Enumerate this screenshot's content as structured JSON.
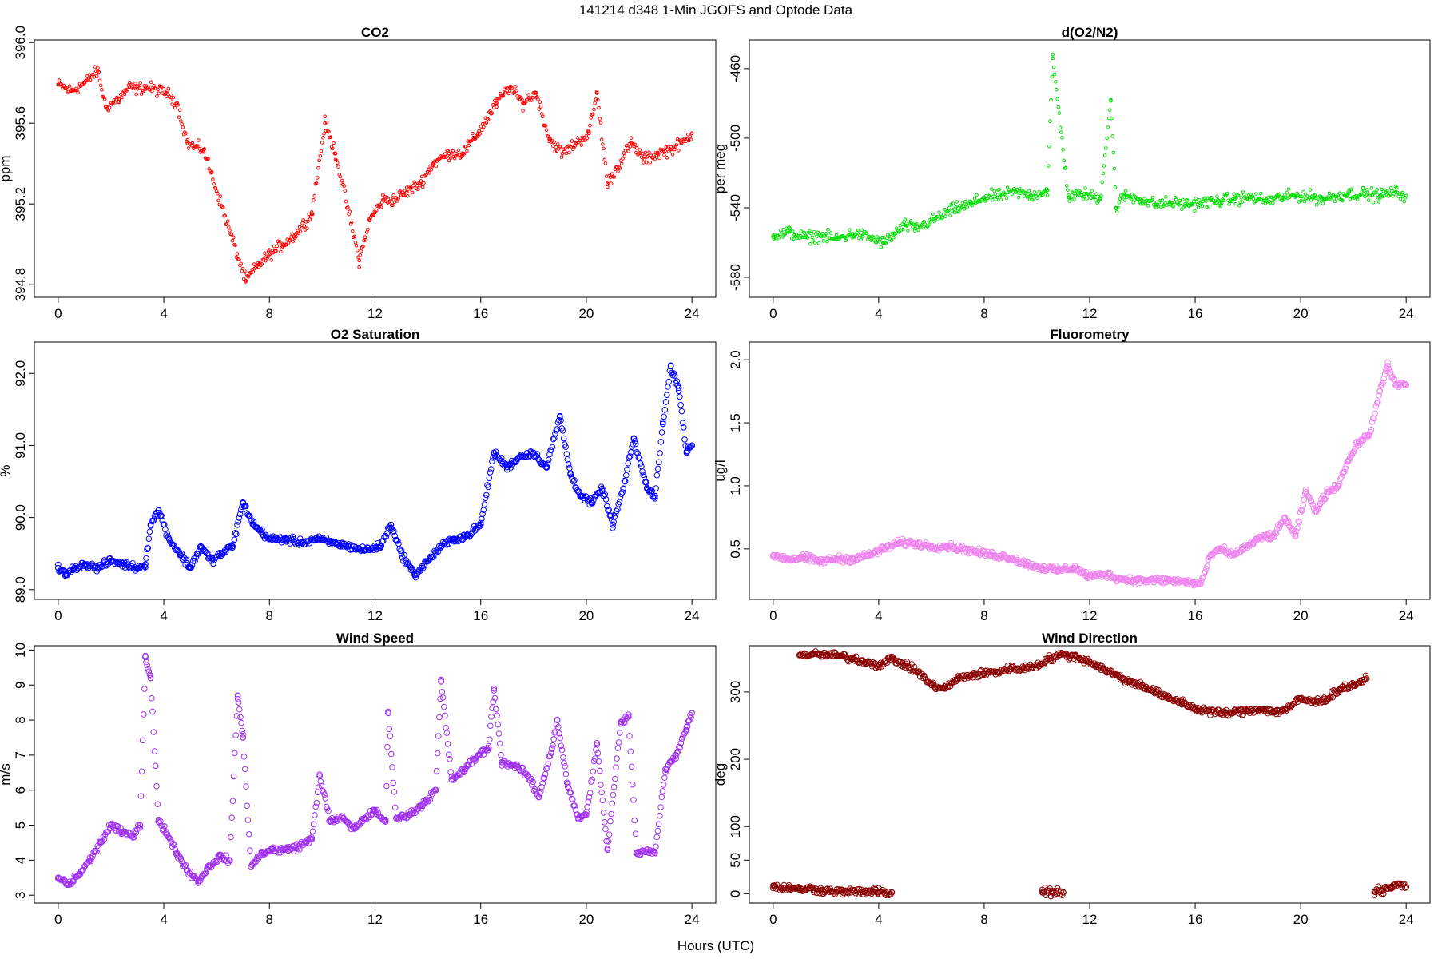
{
  "figure": {
    "title": "141214   d348   1-Min  JGOFS and Optode Data",
    "xlabel": "Hours (UTC)"
  },
  "chart_data": [
    {
      "type": "scatter",
      "title": "CO2",
      "ylabel": "ppm",
      "xlim": [
        0,
        24
      ],
      "ylim": [
        394.75,
        396.0
      ],
      "xticks": [
        0,
        4,
        8,
        12,
        16,
        20,
        24
      ],
      "yticks": [
        394.8,
        395.2,
        395.6,
        396.0
      ],
      "ytick_labels": [
        "394.8",
        "395.2",
        "395.6",
        "396.0"
      ],
      "color": "#ff0000",
      "marker": "small-circle",
      "series": [
        {
          "name": "CO2",
          "x": [
            0,
            0.5,
            1,
            1.5,
            1.8,
            2.3,
            2.7,
            3.0,
            3.3,
            4.1,
            4.5,
            4.9,
            5.2,
            5.5,
            7.1,
            7.6,
            8.0,
            8.5,
            9.0,
            9.6,
            10.1,
            10.5,
            11.4,
            11.8,
            12.3,
            12.7,
            13.2,
            13.7,
            14.2,
            14.8,
            15.3,
            15.9,
            16.6,
            17.1,
            17.6,
            18.1,
            18.6,
            19.1,
            19.6,
            20.1,
            20.4,
            20.8,
            21.7,
            22.2,
            22.7,
            23.2,
            23.6,
            24.0
          ],
          "y": [
            395.79,
            395.76,
            395.8,
            395.86,
            395.68,
            395.72,
            395.78,
            395.77,
            395.78,
            395.75,
            395.7,
            395.5,
            395.48,
            395.47,
            394.82,
            394.9,
            394.95,
            395.0,
            395.05,
            395.15,
            395.6,
            395.45,
            394.92,
            395.12,
            395.22,
            395.22,
            395.26,
            395.3,
            395.4,
            395.45,
            395.45,
            395.55,
            395.7,
            395.78,
            395.7,
            395.75,
            395.52,
            395.45,
            395.5,
            395.55,
            395.75,
            395.3,
            395.5,
            395.42,
            395.45,
            395.47,
            395.5,
            395.55
          ]
        }
      ]
    },
    {
      "type": "scatter",
      "title": "d(O2/N2)",
      "ylabel": "per meg",
      "xlim": [
        0,
        24
      ],
      "ylim": [
        -590,
        -445
      ],
      "xticks": [
        0,
        4,
        8,
        12,
        16,
        20,
        24
      ],
      "yticks": [
        -580,
        -540,
        -500,
        -460
      ],
      "ytick_labels": [
        "-580",
        "-540",
        "-500",
        "-460"
      ],
      "color": "#00dd00",
      "marker": "small-circle",
      "series": [
        {
          "name": "d(O2/N2)",
          "x": [
            0,
            0.6,
            1.2,
            1.8,
            2.4,
            3.0,
            3.4,
            4.2,
            4.6,
            5.0,
            5.4,
            7.0,
            7.5,
            8.0,
            8.6,
            9.2,
            9.8,
            10.4,
            10.6,
            11.2,
            11.8,
            12.4,
            12.8,
            13.0,
            13.3,
            13.9,
            14.5,
            15.1,
            15.7,
            16.9,
            17.5,
            18.1,
            18.7,
            19.3,
            19.9,
            20.5,
            20.8,
            21.8,
            22.4,
            23.0,
            23.6,
            24.0
          ],
          "y": [
            -556,
            -554,
            -557,
            -556,
            -558,
            -555,
            -556,
            -560,
            -555,
            -550,
            -552,
            -540,
            -538,
            -534,
            -533,
            -531,
            -533,
            -530,
            -454,
            -534,
            -532,
            -535,
            -478,
            -540,
            -533,
            -535,
            -538,
            -537,
            -538,
            -536,
            -535,
            -534,
            -536,
            -534,
            -533,
            -534,
            -535,
            -532,
            -532,
            -533,
            -531,
            -533
          ]
        }
      ]
    },
    {
      "type": "scatter",
      "title": "O2 Saturation",
      "ylabel": "%",
      "xlim": [
        0,
        24
      ],
      "ylim": [
        88.9,
        92.4
      ],
      "xticks": [
        0,
        4,
        8,
        12,
        16,
        20,
        24
      ],
      "yticks": [
        89.0,
        90.0,
        91.0,
        92.0
      ],
      "ytick_labels": [
        "89.0",
        "90.0",
        "91.0",
        "92.0"
      ],
      "color": "#0000ff",
      "marker": "circle",
      "series": [
        {
          "name": "O2 Saturation",
          "x": [
            0,
            0.3,
            0.6,
            1.0,
            1.5,
            2.0,
            2.5,
            3.0,
            3.3,
            3.5,
            3.8,
            4.2,
            4.6,
            5.0,
            5.4,
            5.8,
            6.2,
            6.6,
            7.0,
            7.4,
            8.0,
            8.6,
            9.2,
            9.8,
            10.4,
            11.0,
            11.6,
            12.2,
            12.6,
            13.0,
            13.5,
            14.0,
            14.5,
            15.0,
            15.5,
            16.0,
            16.5,
            17.0,
            17.5,
            18.0,
            18.5,
            19.0,
            19.4,
            19.8,
            20.2,
            20.6,
            21.0,
            21.4,
            21.8,
            22.3,
            22.6,
            22.9,
            23.2,
            23.5,
            23.8,
            24.0
          ],
          "y": [
            89.3,
            89.2,
            89.3,
            89.35,
            89.3,
            89.4,
            89.35,
            89.3,
            89.35,
            89.9,
            90.1,
            89.7,
            89.5,
            89.3,
            89.6,
            89.4,
            89.5,
            89.6,
            90.2,
            89.9,
            89.7,
            89.7,
            89.65,
            89.7,
            89.65,
            89.6,
            89.55,
            89.6,
            89.9,
            89.5,
            89.2,
            89.4,
            89.6,
            89.7,
            89.75,
            89.9,
            90.9,
            90.7,
            90.85,
            90.9,
            90.7,
            91.4,
            90.6,
            90.3,
            90.2,
            90.4,
            89.9,
            90.4,
            91.1,
            90.4,
            90.3,
            91.3,
            92.1,
            91.8,
            90.9,
            91.0
          ]
        }
      ]
    },
    {
      "type": "scatter",
      "title": "Fluorometry",
      "ylabel": "ug/l",
      "xlim": [
        0,
        24
      ],
      "ylim": [
        0.12,
        2.12
      ],
      "xticks": [
        0,
        4,
        8,
        12,
        16,
        20,
        24
      ],
      "yticks": [
        0.5,
        1.0,
        1.5,
        2.0
      ],
      "ytick_labels": [
        "0.5",
        "1.0",
        "1.5",
        "2.0"
      ],
      "color": "#ee82ee",
      "marker": "circle",
      "series": [
        {
          "name": "Fluorometry",
          "x": [
            0,
            0.6,
            1.2,
            1.8,
            2.4,
            3.0,
            3.6,
            4.2,
            4.8,
            5.4,
            6.0,
            6.6,
            7.2,
            7.8,
            8.4,
            9.0,
            9.6,
            10.2,
            10.8,
            11.4,
            12.0,
            12.6,
            13.2,
            13.8,
            14.4,
            15.0,
            15.6,
            16.2,
            16.6,
            17.0,
            17.4,
            17.8,
            18.2,
            18.6,
            19.0,
            19.4,
            19.8,
            20.2,
            20.6,
            21.0,
            21.4,
            21.8,
            22.2,
            22.6,
            23.0,
            23.3,
            23.6,
            24.0
          ],
          "y": [
            0.45,
            0.42,
            0.43,
            0.4,
            0.42,
            0.42,
            0.45,
            0.5,
            0.55,
            0.54,
            0.52,
            0.52,
            0.5,
            0.47,
            0.45,
            0.43,
            0.38,
            0.35,
            0.33,
            0.35,
            0.28,
            0.3,
            0.26,
            0.25,
            0.25,
            0.25,
            0.24,
            0.22,
            0.45,
            0.5,
            0.45,
            0.5,
            0.55,
            0.6,
            0.6,
            0.75,
            0.6,
            0.95,
            0.8,
            0.95,
            1.0,
            1.2,
            1.35,
            1.4,
            1.75,
            1.95,
            1.8,
            1.8
          ]
        }
      ]
    },
    {
      "type": "scatter",
      "title": "Wind Speed",
      "ylabel": "m/s",
      "xlim": [
        0,
        24
      ],
      "ylim": [
        2.85,
        10.05
      ],
      "xticks": [
        0,
        4,
        8,
        12,
        16,
        20,
        24
      ],
      "yticks": [
        3,
        4,
        5,
        6,
        7,
        8,
        9,
        10
      ],
      "ytick_labels": [
        "3",
        "4",
        "5",
        "6",
        "7",
        "8",
        "9",
        "10"
      ],
      "color": "#a030f0",
      "marker": "circle",
      "series": [
        {
          "name": "Wind Speed",
          "x": [
            0,
            0.4,
            0.8,
            1.2,
            1.6,
            2.0,
            2.4,
            2.8,
            3.1,
            3.3,
            3.5,
            3.8,
            4.1,
            4.5,
            4.9,
            5.3,
            5.7,
            6.1,
            6.5,
            6.8,
            7.0,
            7.3,
            7.7,
            8.1,
            8.6,
            9.1,
            9.6,
            9.9,
            10.3,
            10.8,
            11.2,
            11.6,
            12.0,
            12.4,
            12.5,
            12.8,
            13.3,
            13.8,
            14.3,
            14.5,
            14.9,
            15.4,
            15.9,
            16.3,
            16.5,
            16.8,
            17.3,
            17.8,
            18.2,
            18.7,
            18.9,
            19.3,
            19.7,
            20.0,
            20.4,
            20.8,
            21.3,
            21.6,
            21.9,
            22.3,
            22.6,
            23.0,
            23.4,
            23.8,
            24.0
          ],
          "y": [
            3.5,
            3.3,
            3.6,
            4.0,
            4.5,
            5.0,
            4.8,
            4.7,
            5.0,
            9.8,
            9.2,
            5.1,
            4.8,
            4.2,
            3.7,
            3.4,
            3.8,
            4.1,
            4.0,
            8.7,
            7.5,
            3.8,
            4.2,
            4.3,
            4.3,
            4.4,
            4.6,
            6.4,
            5.1,
            5.2,
            4.9,
            5.2,
            5.4,
            5.1,
            8.2,
            5.2,
            5.3,
            5.6,
            6.0,
            9.1,
            6.3,
            6.6,
            7.0,
            7.2,
            8.9,
            6.8,
            6.7,
            6.4,
            5.8,
            7.2,
            8.0,
            6.1,
            5.2,
            5.3,
            7.3,
            4.3,
            7.9,
            8.1,
            4.2,
            4.3,
            4.2,
            6.6,
            7.0,
            7.8,
            8.2
          ]
        }
      ]
    },
    {
      "type": "scatter",
      "title": "Wind Direction",
      "ylabel": "deg",
      "xlim": [
        0,
        24
      ],
      "ylim": [
        -10,
        365
      ],
      "xticks": [
        0,
        4,
        8,
        12,
        16,
        20,
        24
      ],
      "yticks": [
        0,
        50,
        100,
        200,
        300
      ],
      "ytick_labels": [
        "0",
        "50",
        "100",
        "200",
        "300"
      ],
      "color": "#8b0000",
      "marker": "circle",
      "series": [
        {
          "name": "Wind Direction",
          "x": [
            0,
            0.3,
            0.6,
            1.0,
            1.4,
            1.8,
            2.2,
            2.6,
            3.8,
            4.0,
            4.5,
            1.0,
            1.5,
            2.0,
            2.5,
            3.0,
            3.5,
            4.0,
            4.5,
            5.0,
            5.5,
            6.0,
            6.5,
            7.0,
            7.5,
            8.0,
            8.5,
            9.0,
            9.5,
            10.0,
            10.5,
            11.0,
            11.5,
            12.0,
            12.5,
            13.0,
            13.5,
            14.0,
            14.5,
            15.0,
            15.5,
            16.0,
            16.5,
            17.0,
            17.5,
            18.0,
            18.5,
            19.0,
            19.5,
            20.0,
            20.5,
            21.0,
            21.5,
            22.0,
            22.5,
            10.2,
            10.6,
            11.0,
            22.8,
            23.1,
            23.4,
            23.7,
            24.0
          ],
          "y": [
            12,
            8,
            10,
            6,
            8,
            5,
            4,
            3,
            3,
            2,
            2,
            355,
            356,
            355,
            354,
            350,
            345,
            340,
            350,
            340,
            330,
            310,
            305,
            320,
            325,
            328,
            330,
            335,
            335,
            340,
            350,
            356,
            352,
            345,
            335,
            325,
            315,
            310,
            300,
            290,
            285,
            275,
            272,
            268,
            270,
            272,
            275,
            270,
            275,
            290,
            285,
            290,
            305,
            310,
            320,
            2,
            3,
            2,
            3,
            5,
            8,
            15,
            10
          ]
        }
      ]
    }
  ]
}
